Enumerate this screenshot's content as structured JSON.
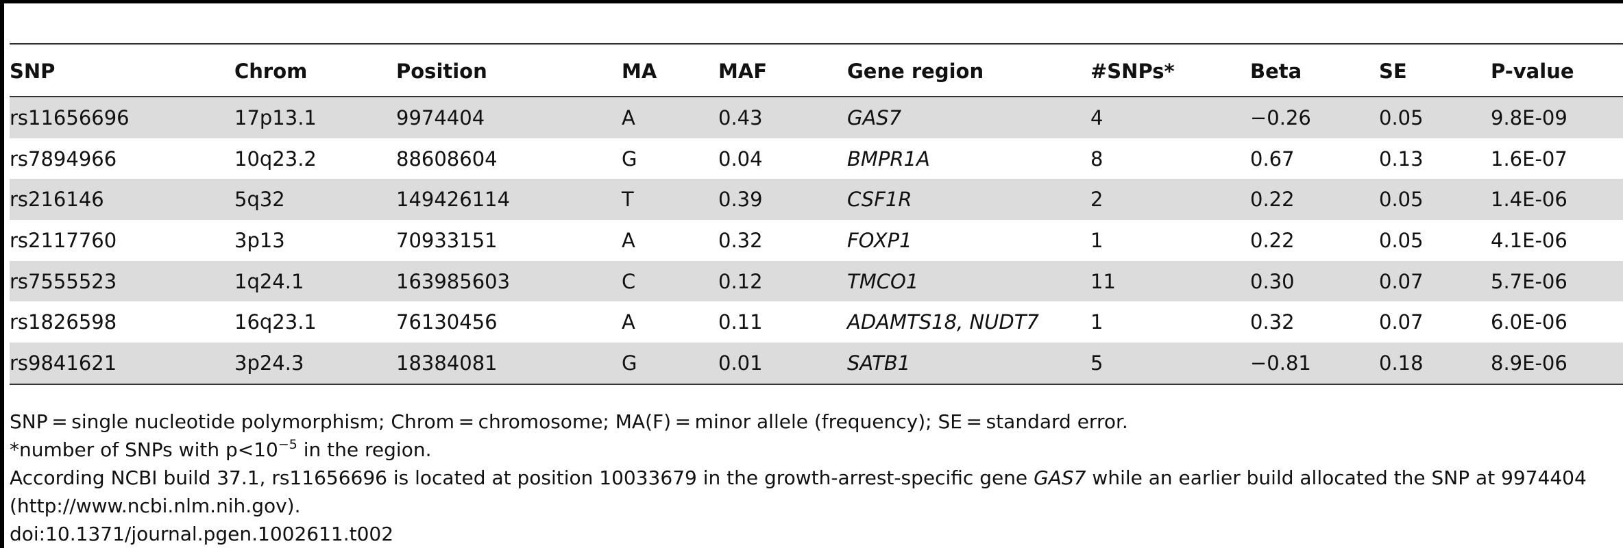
{
  "table": {
    "columns": [
      "SNP",
      "Chrom",
      "Position",
      "MA",
      "MAF",
      "Gene region",
      "#SNPs*",
      "Beta",
      "SE",
      "P-value"
    ],
    "rows": [
      {
        "snp": "rs11656696",
        "chrom": "17p13.1",
        "position": "9974404",
        "ma": "A",
        "maf": "0.43",
        "gene": "GAS7",
        "nsnps": "4",
        "beta": "−0.26",
        "se": "0.05",
        "p": "9.8E-09"
      },
      {
        "snp": "rs7894966",
        "chrom": "10q23.2",
        "position": "88608604",
        "ma": "G",
        "maf": "0.04",
        "gene": "BMPR1A",
        "nsnps": "8",
        "beta": "0.67",
        "se": "0.13",
        "p": "1.6E-07"
      },
      {
        "snp": "rs216146",
        "chrom": "5q32",
        "position": "149426114",
        "ma": "T",
        "maf": "0.39",
        "gene": "CSF1R",
        "nsnps": "2",
        "beta": "0.22",
        "se": "0.05",
        "p": "1.4E-06"
      },
      {
        "snp": "rs2117760",
        "chrom": "3p13",
        "position": "70933151",
        "ma": "A",
        "maf": "0.32",
        "gene": "FOXP1",
        "nsnps": "1",
        "beta": "0.22",
        "se": "0.05",
        "p": "4.1E-06"
      },
      {
        "snp": "rs7555523",
        "chrom": "1q24.1",
        "position": "163985603",
        "ma": "C",
        "maf": "0.12",
        "gene": "TMCO1",
        "nsnps": "11",
        "beta": "0.30",
        "se": "0.07",
        "p": "5.7E-06"
      },
      {
        "snp": "rs1826598",
        "chrom": "16q23.1",
        "position": "76130456",
        "ma": "A",
        "maf": "0.11",
        "gene": "ADAMTS18, NUDT7",
        "nsnps": "1",
        "beta": "0.32",
        "se": "0.07",
        "p": "6.0E-06"
      },
      {
        "snp": "rs9841621",
        "chrom": "3p24.3",
        "position": "18384081",
        "ma": "G",
        "maf": "0.01",
        "gene": "SATB1",
        "nsnps": "5",
        "beta": "−0.81",
        "se": "0.18",
        "p": "8.9E-06"
      }
    ]
  },
  "footnotes": {
    "abbrev": "SNP = single nucleotide polymorphism; Chrom = chromosome; MA(F) = minor allele (frequency); SE = standard error.",
    "star_text": "*number of SNPs with p<10",
    "star_exp": "−5",
    "star_tail": " in the region.",
    "ncbi_pre": "According NCBI build 37.1, rs11656696 is located at position 10033679 in the growth-arrest-specific gene ",
    "ncbi_gene": "GAS7",
    "ncbi_post": " while an earlier build allocated the SNP at 9974404 (http://www.ncbi.nlm.nih.gov).",
    "doi": "doi:10.1371/journal.pgen.1002611.t002"
  }
}
